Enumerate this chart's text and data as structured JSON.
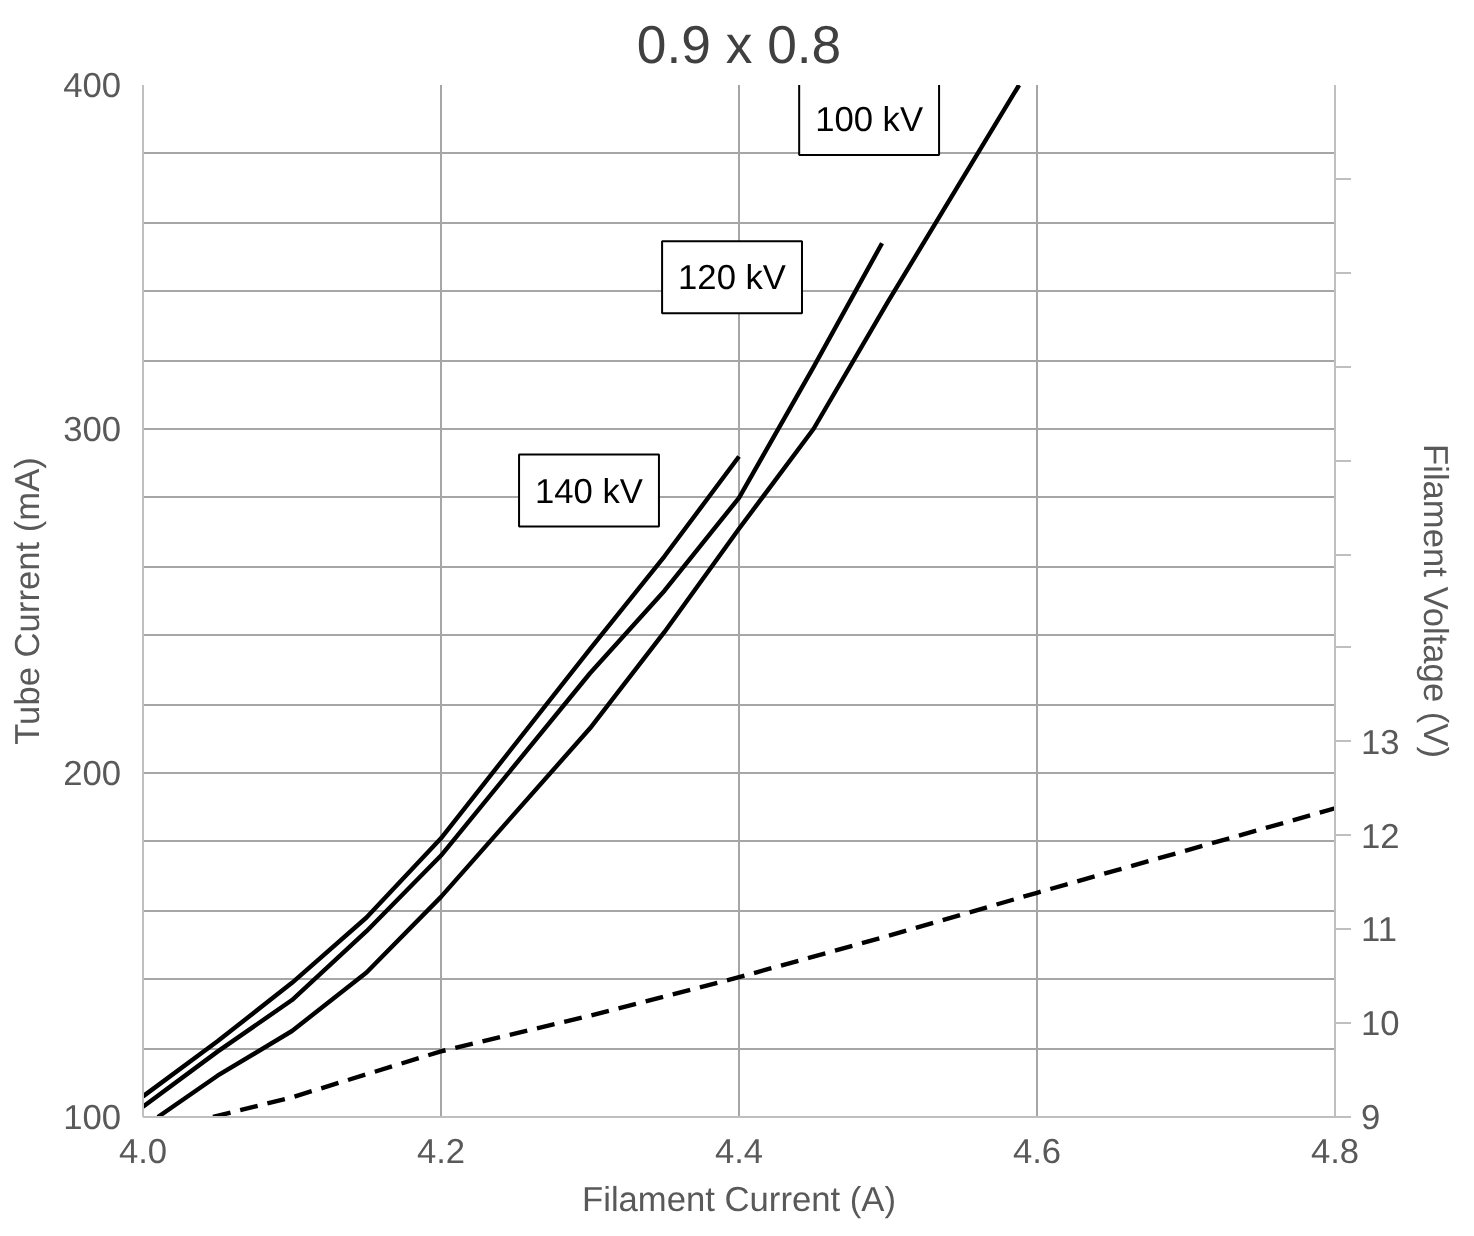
{
  "chart_data": {
    "type": "line",
    "title": "0.9 x 0.8",
    "xlabel": "Filament Current (A)",
    "ylabel": "Tube Current (mA)",
    "y2label": "Filament Voltage (V)",
    "xlim": [
      4.0,
      4.8
    ],
    "xticks": [
      {
        "value": 4.0,
        "label": "4.0"
      },
      4.2,
      4.4,
      4.6,
      {
        "value": 4.8,
        "label": "4.8"
      }
    ],
    "ylim": [
      100,
      400
    ],
    "yticks": [
      100,
      {
        "value": 120,
        "label": null
      },
      {
        "value": 140,
        "label": null
      },
      {
        "value": 160,
        "label": null
      },
      {
        "value": 180,
        "label": null
      },
      200,
      {
        "value": 220,
        "label": null
      },
      {
        "value": 240,
        "label": null
      },
      {
        "value": 260,
        "label": null
      },
      {
        "value": 280,
        "label": null
      },
      300,
      {
        "value": 320,
        "label": null
      },
      {
        "value": 340,
        "label": null
      },
      {
        "value": 360,
        "label": null
      },
      {
        "value": 380,
        "label": null
      },
      400
    ],
    "y2lim": [
      9,
      20
    ],
    "y2ticks": [
      9,
      10,
      11,
      12,
      13,
      {
        "value": 14,
        "label": null
      },
      {
        "value": 15,
        "label": null
      },
      {
        "value": 16,
        "label": null
      },
      {
        "value": 17,
        "label": null
      },
      {
        "value": 18,
        "label": null
      },
      {
        "value": 19,
        "label": null
      }
    ],
    "grid": true,
    "series": [
      {
        "name": "140 kV",
        "color": "#000000",
        "line_style": "solid",
        "x": [
          4.0,
          4.05,
          4.1,
          4.15,
          4.2,
          4.3,
          4.35,
          4.4
        ],
        "values": [
          106,
          122,
          139,
          158,
          181,
          236,
          263,
          292
        ]
      },
      {
        "name": "120 kV",
        "color": "#000000",
        "line_style": "solid",
        "x": [
          4.0,
          4.05,
          4.1,
          4.15,
          4.2,
          4.3,
          4.35,
          4.4,
          4.45,
          4.496
        ],
        "values": [
          103,
          119,
          134,
          154,
          176,
          229,
          253,
          280,
          318,
          354
        ]
      },
      {
        "name": "100 kV",
        "color": "#000000",
        "line_style": "solid",
        "x": [
          4.01,
          4.05,
          4.1,
          4.15,
          4.2,
          4.3,
          4.35,
          4.4,
          4.45,
          4.5,
          4.588
        ],
        "values": [
          100,
          112,
          125,
          142,
          164,
          213,
          241,
          271,
          300,
          337,
          400
        ]
      },
      {
        "color": "#000000",
        "line_style": "dashed",
        "axis": "y2",
        "x": [
          4.047,
          4.1,
          4.2,
          4.3,
          4.4,
          4.5,
          4.6,
          4.7,
          4.8
        ],
        "values": [
          9,
          9.21,
          9.7,
          10.08,
          10.49,
          10.93,
          11.39,
          11.84,
          12.29
        ]
      }
    ]
  }
}
